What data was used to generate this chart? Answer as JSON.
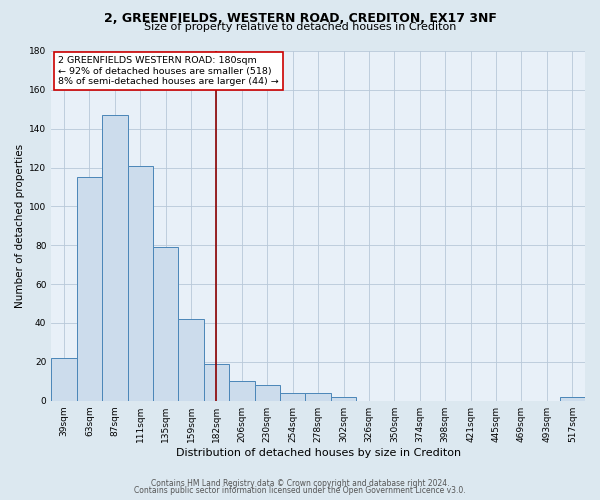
{
  "title1": "2, GREENFIELDS, WESTERN ROAD, CREDITON, EX17 3NF",
  "title2": "Size of property relative to detached houses in Crediton",
  "xlabel": "Distribution of detached houses by size in Crediton",
  "ylabel": "Number of detached properties",
  "bar_labels": [
    "39sqm",
    "63sqm",
    "87sqm",
    "111sqm",
    "135sqm",
    "159sqm",
    "182sqm",
    "206sqm",
    "230sqm",
    "254sqm",
    "278sqm",
    "302sqm",
    "326sqm",
    "350sqm",
    "374sqm",
    "398sqm",
    "421sqm",
    "445sqm",
    "469sqm",
    "493sqm",
    "517sqm"
  ],
  "bar_values": [
    22,
    115,
    147,
    121,
    79,
    42,
    19,
    10,
    8,
    4,
    4,
    2,
    0,
    0,
    0,
    0,
    0,
    0,
    0,
    0,
    2
  ],
  "bar_color": "#ccdcec",
  "bar_edgecolor": "#4a86b8",
  "vline_x": 6,
  "vline_color": "#8b0000",
  "ylim": [
    0,
    180
  ],
  "yticks": [
    0,
    20,
    40,
    60,
    80,
    100,
    120,
    140,
    160,
    180
  ],
  "annotation_title": "2 GREENFIELDS WESTERN ROAD: 180sqm",
  "annotation_line1": "← 92% of detached houses are smaller (518)",
  "annotation_line2": "8% of semi-detached houses are larger (44) →",
  "annotation_box_color": "#ffffff",
  "annotation_border_color": "#cc0000",
  "footer1": "Contains HM Land Registry data © Crown copyright and database right 2024.",
  "footer2": "Contains public sector information licensed under the Open Government Licence v3.0.",
  "bg_color": "#dce8f0",
  "plot_bg_color": "#e8f0f8",
  "title1_fontsize": 9,
  "title2_fontsize": 8,
  "ylabel_fontsize": 7.5,
  "xlabel_fontsize": 8,
  "tick_fontsize": 6.5,
  "ann_fontsize": 6.8,
  "footer_fontsize": 5.5
}
